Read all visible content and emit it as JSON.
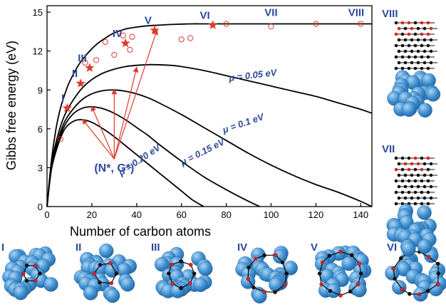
{
  "chart_data": {
    "type": "line",
    "xlabel": "Number of carbon atoms",
    "ylabel": "Gibbs free energy (eV)",
    "xlim": [
      0,
      145
    ],
    "ylim": [
      0,
      15.5
    ],
    "xticks": [
      0,
      20,
      40,
      60,
      80,
      100,
      120,
      140
    ],
    "yticks": [
      0,
      3,
      6,
      9,
      12,
      15
    ],
    "x_tick_labels": [
      "0",
      "20",
      "40",
      "60",
      "80",
      "100",
      "120",
      "140"
    ],
    "y_tick_labels": [
      "0",
      "3",
      "6",
      "9",
      "12",
      "15"
    ],
    "grid": false,
    "series": [
      {
        "name": "",
        "x": [
          0,
          2,
          4,
          6,
          8,
          10,
          14,
          18,
          22,
          26,
          30,
          35,
          40,
          45,
          50,
          55,
          60,
          65,
          70,
          75,
          80,
          90,
          100,
          110,
          120,
          130,
          140,
          145
        ],
        "values": [
          0,
          3.6,
          6.0,
          7.6,
          8.7,
          9.6,
          10.9,
          11.8,
          12.5,
          13.0,
          13.4,
          13.7,
          13.85,
          13.95,
          14.0,
          14.05,
          14.08,
          14.1,
          14.1,
          14.1,
          14.1,
          14.1,
          14.1,
          14.1,
          14.1,
          14.1,
          14.1,
          14.1
        ]
      },
      {
        "name": "μ = 0.05 eV",
        "x": [
          0,
          2,
          5,
          8,
          12,
          16,
          20,
          25,
          30,
          35,
          40,
          45,
          48,
          55,
          60,
          70,
          80,
          90,
          100,
          110,
          120,
          130,
          140,
          145
        ],
        "values": [
          0,
          3.3,
          5.6,
          7.1,
          8.3,
          9.2,
          9.8,
          10.3,
          10.6,
          10.8,
          10.9,
          10.95,
          10.95,
          10.9,
          10.8,
          10.5,
          10.1,
          9.7,
          9.3,
          8.9,
          8.5,
          8.0,
          7.5,
          7.2
        ]
      },
      {
        "name": "μ = 0.1 eV",
        "x": [
          0,
          2,
          5,
          8,
          12,
          16,
          20,
          25,
          30,
          35,
          40,
          45,
          50,
          60,
          70,
          80,
          90,
          100,
          110,
          120,
          130,
          140,
          145
        ],
        "values": [
          0,
          3.1,
          5.2,
          6.6,
          7.6,
          8.3,
          8.7,
          8.95,
          9.0,
          8.9,
          8.7,
          8.4,
          8.0,
          7.1,
          6.1,
          5.1,
          4.1,
          3.2,
          2.4,
          1.7,
          1.1,
          0.4,
          0
        ]
      },
      {
        "name": "μ = 0.15 eV",
        "x": [
          0,
          2,
          5,
          8,
          12,
          16,
          20,
          25,
          30,
          35,
          40,
          45,
          50,
          60,
          70,
          80,
          90,
          95
        ],
        "values": [
          0,
          3.0,
          5.0,
          6.3,
          7.2,
          7.6,
          7.7,
          7.55,
          7.2,
          6.7,
          6.1,
          5.5,
          4.8,
          3.5,
          2.3,
          1.3,
          0.4,
          0
        ]
      },
      {
        "name": "μ = 0.20 eV",
        "x": [
          0,
          2,
          5,
          8,
          12,
          16,
          20,
          25,
          30,
          35,
          40,
          45,
          50,
          55,
          60,
          65,
          70
        ],
        "values": [
          0,
          2.9,
          4.8,
          6.0,
          6.6,
          6.7,
          6.5,
          6.0,
          5.4,
          4.7,
          4.0,
          3.3,
          2.6,
          1.9,
          1.2,
          0.5,
          0
        ]
      }
    ],
    "stars": [
      {
        "label": "I",
        "x": 9,
        "y": 7.6
      },
      {
        "label": "II",
        "x": 15,
        "y": 9.5
      },
      {
        "label": "III",
        "x": 19,
        "y": 10.7
      },
      {
        "label": "IV",
        "x": 35,
        "y": 12.6
      },
      {
        "label": "V",
        "x": 48,
        "y": 13.6
      },
      {
        "label": "VI",
        "x": 74,
        "y": 14.0
      }
    ],
    "open_circles": [
      {
        "x": 6,
        "y": 5.2
      },
      {
        "x": 17,
        "y": 11.1
      },
      {
        "x": 22,
        "y": 11.3
      },
      {
        "x": 26,
        "y": 12.7
      },
      {
        "x": 30,
        "y": 11.7
      },
      {
        "x": 34,
        "y": 13.2
      },
      {
        "x": 37,
        "y": 12.1
      },
      {
        "x": 38,
        "y": 13.1
      },
      {
        "x": 60,
        "y": 12.9
      },
      {
        "x": 64,
        "y": 13.0
      },
      {
        "x": 80,
        "y": 14.1
      },
      {
        "x": 100,
        "y": 13.9
      },
      {
        "x": 120,
        "y": 14.1
      },
      {
        "x": 140,
        "y": 14.1
      }
    ],
    "point_labels": [
      {
        "text": "VII",
        "x": 100,
        "y": 14.7
      },
      {
        "text": "VIII",
        "x": 138,
        "y": 14.7
      }
    ],
    "curve_labels": [
      {
        "text": "μ = 0.05 eV",
        "x": 92,
        "y": 9.9,
        "angle": -7
      },
      {
        "text": "μ = 0.1 eV",
        "x": 88,
        "y": 6.2,
        "angle": -19
      },
      {
        "text": "μ = 0.15 eV",
        "x": 70,
        "y": 4.0,
        "angle": -27
      },
      {
        "text": "μ = 0.20 eV",
        "x": 42,
        "y": 3.4,
        "angle": -34
      }
    ],
    "annotation": {
      "text": "(N*, G*)",
      "x": 30,
      "y": 2.9,
      "arrow_targets": [
        {
          "x": 16,
          "y": 6.7
        },
        {
          "x": 20,
          "y": 7.7
        },
        {
          "x": 30,
          "y": 9.0
        },
        {
          "x": 40,
          "y": 10.7
        },
        {
          "x": 49,
          "y": 13.6
        }
      ]
    }
  },
  "side_panels": [
    {
      "label": "VIII"
    },
    {
      "label": "VII"
    }
  ],
  "bottom_panels": [
    {
      "label": "I"
    },
    {
      "label": "II"
    },
    {
      "label": "III"
    },
    {
      "label": "IV"
    },
    {
      "label": "V"
    },
    {
      "label": "VI"
    }
  ],
  "colors": {
    "curve": "#000000",
    "marker": "#e03a2e",
    "label_blue": "#2d4a9a",
    "cluster": "#3e8fd0",
    "carbon": "#111111",
    "oxygen": "#e02020"
  }
}
